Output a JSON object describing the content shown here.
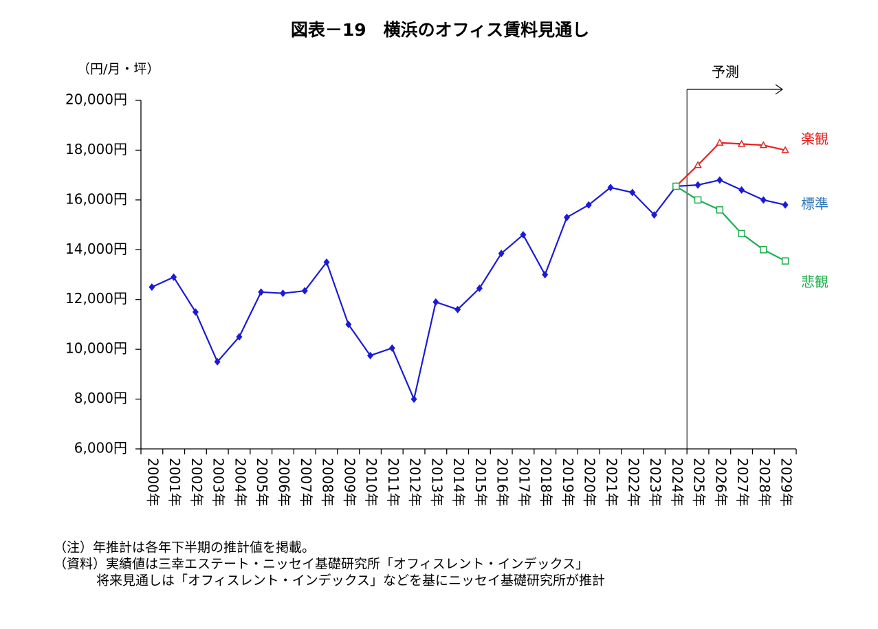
{
  "chart_data": {
    "type": "line",
    "title": "図表－19　横浜のオフィス賃料見通し",
    "y_label": "（円/月・坪）",
    "annotation": "予測",
    "notes": [
      "（注）年推計は各年下半期の推計値を掲載。",
      "（資料）実績値は三幸エステート・ニッセイ基礎研究所「オフィスレント・インデックス」",
      "将来見通しは「オフィスレント・インデックス」などを基にニッセイ基礎研究所が推計"
    ],
    "categories": [
      "2000年",
      "2001年",
      "2002年",
      "2003年",
      "2004年",
      "2005年",
      "2006年",
      "2007年",
      "2008年",
      "2009年",
      "2010年",
      "2011年",
      "2012年",
      "2013年",
      "2014年",
      "2015年",
      "2016年",
      "2017年",
      "2018年",
      "2019年",
      "2020年",
      "2021年",
      "2022年",
      "2023年",
      "2024年",
      "2025年",
      "2026年",
      "2027年",
      "2028年",
      "2029年"
    ],
    "series": [
      {
        "name": "標準",
        "color": "#1a1ad8",
        "label_color": "#2e75b6",
        "marker": "diamond",
        "values": [
          12500,
          12900,
          11500,
          9500,
          10500,
          12300,
          12250,
          12350,
          13500,
          11000,
          9750,
          10050,
          8000,
          11900,
          11600,
          12450,
          13850,
          14600,
          13000,
          15300,
          15800,
          16500,
          16300,
          15400,
          16550,
          16600,
          16800,
          16400,
          16000,
          15800
        ]
      },
      {
        "name": "楽観",
        "color": "#e8201e",
        "label_color": "#e8201e",
        "marker": "triangle-open",
        "values": [
          null,
          null,
          null,
          null,
          null,
          null,
          null,
          null,
          null,
          null,
          null,
          null,
          null,
          null,
          null,
          null,
          null,
          null,
          null,
          null,
          null,
          null,
          null,
          null,
          16550,
          17400,
          18300,
          18250,
          18200,
          18000
        ]
      },
      {
        "name": "悲観",
        "color": "#1fae4e",
        "label_color": "#1fae4e",
        "marker": "square-open",
        "values": [
          null,
          null,
          null,
          null,
          null,
          null,
          null,
          null,
          null,
          null,
          null,
          null,
          null,
          null,
          null,
          null,
          null,
          null,
          null,
          null,
          null,
          null,
          null,
          null,
          16550,
          16000,
          15600,
          14650,
          14000,
          13550
        ]
      }
    ],
    "ylim": [
      6000,
      20000
    ],
    "yticks": [
      {
        "value": 6000,
        "label": "6,000円"
      },
      {
        "value": 8000,
        "label": "8,000円"
      },
      {
        "value": 10000,
        "label": "10,000円"
      },
      {
        "value": 12000,
        "label": "12,000円"
      },
      {
        "value": 14000,
        "label": "14,000円"
      },
      {
        "value": 16000,
        "label": "16,000円"
      },
      {
        "value": 18000,
        "label": "18,000円"
      },
      {
        "value": 20000,
        "label": "20,000円"
      }
    ],
    "grid": false
  }
}
